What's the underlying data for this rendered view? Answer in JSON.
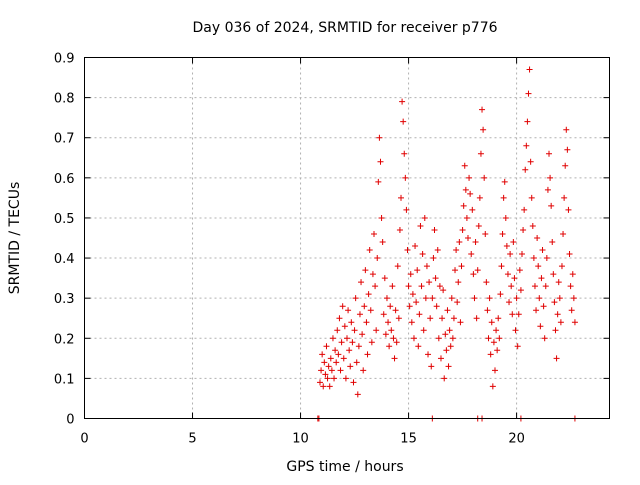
{
  "chart_data": {
    "type": "scatter",
    "title": "Day 036 of 2024, SRMTID for receiver p776",
    "xlabel": "GPS time / hours",
    "ylabel": "SRMTID / TECUs",
    "xlim": [
      0,
      24.3
    ],
    "ylim": [
      0,
      0.9
    ],
    "x_ticks": [
      0,
      5,
      10,
      15,
      20
    ],
    "x_tick_labels": [
      "0",
      "5",
      "10",
      "15",
      "20"
    ],
    "y_ticks": [
      0,
      0.1,
      0.2,
      0.3,
      0.4,
      0.5,
      0.6,
      0.7,
      0.8,
      0.9
    ],
    "y_tick_labels": [
      "0",
      "0.1",
      "0.2",
      "0.3",
      "0.4",
      "0.5",
      "0.6",
      "0.7",
      "0.8",
      "0.9"
    ],
    "grid": true,
    "legend": "none",
    "marker": "+",
    "color": "#e00000",
    "series": [
      {
        "name": "SRMTID",
        "points": [
          [
            10.8,
            0.0
          ],
          [
            10.85,
            0.0
          ],
          [
            16.1,
            0.0
          ],
          [
            18.2,
            0.0
          ],
          [
            18.4,
            0.0
          ],
          [
            20.2,
            0.0
          ],
          [
            22.7,
            0.0
          ],
          [
            10.9,
            0.09
          ],
          [
            10.95,
            0.12
          ],
          [
            11.0,
            0.16
          ],
          [
            11.05,
            0.08
          ],
          [
            11.1,
            0.14
          ],
          [
            11.15,
            0.11
          ],
          [
            11.2,
            0.18
          ],
          [
            11.25,
            0.1
          ],
          [
            11.3,
            0.13
          ],
          [
            11.35,
            0.08
          ],
          [
            11.4,
            0.15
          ],
          [
            11.45,
            0.12
          ],
          [
            11.5,
            0.2
          ],
          [
            11.55,
            0.1
          ],
          [
            11.6,
            0.17
          ],
          [
            11.65,
            0.14
          ],
          [
            11.7,
            0.22
          ],
          [
            11.75,
            0.16
          ],
          [
            11.8,
            0.25
          ],
          [
            11.85,
            0.12
          ],
          [
            11.9,
            0.19
          ],
          [
            11.95,
            0.28
          ],
          [
            12.0,
            0.15
          ],
          [
            12.05,
            0.23
          ],
          [
            12.1,
            0.1
          ],
          [
            12.15,
            0.2
          ],
          [
            12.2,
            0.27
          ],
          [
            12.25,
            0.17
          ],
          [
            12.3,
            0.13
          ],
          [
            12.35,
            0.24
          ],
          [
            12.4,
            0.19
          ],
          [
            12.45,
            0.09
          ],
          [
            12.5,
            0.22
          ],
          [
            12.55,
            0.3
          ],
          [
            12.6,
            0.14
          ],
          [
            12.65,
            0.06
          ],
          [
            12.7,
            0.18
          ],
          [
            12.75,
            0.26
          ],
          [
            12.8,
            0.34
          ],
          [
            12.85,
            0.21
          ],
          [
            12.9,
            0.12
          ],
          [
            12.95,
            0.28
          ],
          [
            13.0,
            0.37
          ],
          [
            13.05,
            0.24
          ],
          [
            13.1,
            0.16
          ],
          [
            13.15,
            0.31
          ],
          [
            13.2,
            0.42
          ],
          [
            13.25,
            0.27
          ],
          [
            13.3,
            0.19
          ],
          [
            13.35,
            0.36
          ],
          [
            13.4,
            0.46
          ],
          [
            13.45,
            0.33
          ],
          [
            13.5,
            0.22
          ],
          [
            13.55,
            0.4
          ],
          [
            13.6,
            0.59
          ],
          [
            13.65,
            0.7
          ],
          [
            13.7,
            0.64
          ],
          [
            13.75,
            0.5
          ],
          [
            13.8,
            0.44
          ],
          [
            13.85,
            0.26
          ],
          [
            13.9,
            0.35
          ],
          [
            13.95,
            0.21
          ],
          [
            14.0,
            0.3
          ],
          [
            14.05,
            0.24
          ],
          [
            14.1,
            0.18
          ],
          [
            14.15,
            0.28
          ],
          [
            14.2,
            0.22
          ],
          [
            14.25,
            0.33
          ],
          [
            14.3,
            0.2
          ],
          [
            14.35,
            0.15
          ],
          [
            14.4,
            0.27
          ],
          [
            14.45,
            0.19
          ],
          [
            14.5,
            0.38
          ],
          [
            14.55,
            0.25
          ],
          [
            14.6,
            0.47
          ],
          [
            14.65,
            0.55
          ],
          [
            14.7,
            0.79
          ],
          [
            14.75,
            0.74
          ],
          [
            14.8,
            0.66
          ],
          [
            14.85,
            0.6
          ],
          [
            14.9,
            0.52
          ],
          [
            14.95,
            0.42
          ],
          [
            15.0,
            0.33
          ],
          [
            15.05,
            0.28
          ],
          [
            15.1,
            0.36
          ],
          [
            15.15,
            0.24
          ],
          [
            15.2,
            0.31
          ],
          [
            15.25,
            0.2
          ],
          [
            15.3,
            0.43
          ],
          [
            15.35,
            0.29
          ],
          [
            15.4,
            0.37
          ],
          [
            15.45,
            0.18
          ],
          [
            15.5,
            0.26
          ],
          [
            15.55,
            0.48
          ],
          [
            15.6,
            0.33
          ],
          [
            15.65,
            0.41
          ],
          [
            15.7,
            0.22
          ],
          [
            15.75,
            0.5
          ],
          [
            15.8,
            0.3
          ],
          [
            15.85,
            0.38
          ],
          [
            15.9,
            0.16
          ],
          [
            15.95,
            0.34
          ],
          [
            16.0,
            0.25
          ],
          [
            16.05,
            0.13
          ],
          [
            16.1,
            0.3
          ],
          [
            16.15,
            0.4
          ],
          [
            16.2,
            0.47
          ],
          [
            16.25,
            0.35
          ],
          [
            16.3,
            0.28
          ],
          [
            16.35,
            0.42
          ],
          [
            16.4,
            0.2
          ],
          [
            16.45,
            0.33
          ],
          [
            16.5,
            0.15
          ],
          [
            16.55,
            0.25
          ],
          [
            16.6,
            0.32
          ],
          [
            16.65,
            0.1
          ],
          [
            16.7,
            0.21
          ],
          [
            16.75,
            0.17
          ],
          [
            16.8,
            0.27
          ],
          [
            16.85,
            0.13
          ],
          [
            16.9,
            0.22
          ],
          [
            16.95,
            0.18
          ],
          [
            17.0,
            0.3
          ],
          [
            17.05,
            0.2
          ],
          [
            17.1,
            0.25
          ],
          [
            17.15,
            0.37
          ],
          [
            17.2,
            0.42
          ],
          [
            17.25,
            0.29
          ],
          [
            17.3,
            0.34
          ],
          [
            17.35,
            0.44
          ],
          [
            17.4,
            0.24
          ],
          [
            17.45,
            0.38
          ],
          [
            17.5,
            0.47
          ],
          [
            17.55,
            0.53
          ],
          [
            17.6,
            0.63
          ],
          [
            17.65,
            0.57
          ],
          [
            17.7,
            0.5
          ],
          [
            17.75,
            0.45
          ],
          [
            17.8,
            0.6
          ],
          [
            17.85,
            0.56
          ],
          [
            17.9,
            0.41
          ],
          [
            17.95,
            0.52
          ],
          [
            18.0,
            0.36
          ],
          [
            18.05,
            0.3
          ],
          [
            18.1,
            0.44
          ],
          [
            18.15,
            0.25
          ],
          [
            18.2,
            0.37
          ],
          [
            18.25,
            0.48
          ],
          [
            18.3,
            0.55
          ],
          [
            18.35,
            0.66
          ],
          [
            18.4,
            0.77
          ],
          [
            18.45,
            0.72
          ],
          [
            18.5,
            0.6
          ],
          [
            18.55,
            0.46
          ],
          [
            18.6,
            0.34
          ],
          [
            18.65,
            0.27
          ],
          [
            18.7,
            0.2
          ],
          [
            18.75,
            0.3
          ],
          [
            18.8,
            0.16
          ],
          [
            18.85,
            0.24
          ],
          [
            18.9,
            0.08
          ],
          [
            18.95,
            0.19
          ],
          [
            19.0,
            0.12
          ],
          [
            19.05,
            0.22
          ],
          [
            19.1,
            0.17
          ],
          [
            19.15,
            0.25
          ],
          [
            19.2,
            0.2
          ],
          [
            19.25,
            0.31
          ],
          [
            19.3,
            0.38
          ],
          [
            19.35,
            0.46
          ],
          [
            19.4,
            0.55
          ],
          [
            19.45,
            0.59
          ],
          [
            19.5,
            0.5
          ],
          [
            19.55,
            0.43
          ],
          [
            19.6,
            0.36
          ],
          [
            19.65,
            0.29
          ],
          [
            19.7,
            0.41
          ],
          [
            19.75,
            0.33
          ],
          [
            19.8,
            0.26
          ],
          [
            19.85,
            0.44
          ],
          [
            19.9,
            0.35
          ],
          [
            19.95,
            0.22
          ],
          [
            20.0,
            0.3
          ],
          [
            20.05,
            0.18
          ],
          [
            20.1,
            0.26
          ],
          [
            20.15,
            0.37
          ],
          [
            20.2,
            0.32
          ],
          [
            20.25,
            0.41
          ],
          [
            20.3,
            0.47
          ],
          [
            20.35,
            0.52
          ],
          [
            20.4,
            0.62
          ],
          [
            20.45,
            0.68
          ],
          [
            20.5,
            0.74
          ],
          [
            20.55,
            0.81
          ],
          [
            20.6,
            0.87
          ],
          [
            20.65,
            0.64
          ],
          [
            20.7,
            0.55
          ],
          [
            20.75,
            0.48
          ],
          [
            20.8,
            0.4
          ],
          [
            20.85,
            0.33
          ],
          [
            20.9,
            0.27
          ],
          [
            20.95,
            0.45
          ],
          [
            21.0,
            0.38
          ],
          [
            21.05,
            0.3
          ],
          [
            21.1,
            0.23
          ],
          [
            21.15,
            0.35
          ],
          [
            21.2,
            0.42
          ],
          [
            21.25,
            0.28
          ],
          [
            21.3,
            0.2
          ],
          [
            21.35,
            0.33
          ],
          [
            21.4,
            0.4
          ],
          [
            21.45,
            0.57
          ],
          [
            21.5,
            0.66
          ],
          [
            21.55,
            0.6
          ],
          [
            21.6,
            0.53
          ],
          [
            21.65,
            0.44
          ],
          [
            21.7,
            0.36
          ],
          [
            21.75,
            0.29
          ],
          [
            21.8,
            0.22
          ],
          [
            21.85,
            0.15
          ],
          [
            21.9,
            0.26
          ],
          [
            21.95,
            0.34
          ],
          [
            22.0,
            0.3
          ],
          [
            22.05,
            0.24
          ],
          [
            22.1,
            0.38
          ],
          [
            22.15,
            0.46
          ],
          [
            22.2,
            0.55
          ],
          [
            22.25,
            0.63
          ],
          [
            22.3,
            0.72
          ],
          [
            22.35,
            0.67
          ],
          [
            22.4,
            0.52
          ],
          [
            22.45,
            0.41
          ],
          [
            22.5,
            0.33
          ],
          [
            22.55,
            0.27
          ],
          [
            22.6,
            0.36
          ],
          [
            22.65,
            0.3
          ],
          [
            22.7,
            0.24
          ]
        ]
      }
    ]
  }
}
